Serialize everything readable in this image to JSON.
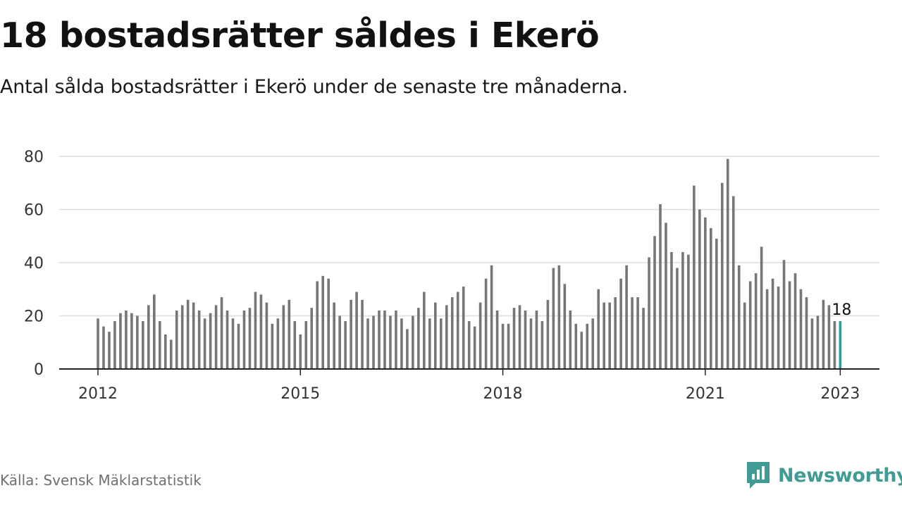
{
  "header": {
    "title": "18 bostadsrätter såldes i Ekerö",
    "subtitle": "Antal sålda bostadsrätter i Ekerö under de senaste tre månaderna."
  },
  "footer": {
    "source": "Källa: Svensk Mäklarstatistik",
    "brand": "Newsworthy"
  },
  "colors": {
    "bar": "#76767a",
    "highlight": "#20a39e",
    "grid": "#dddddd",
    "axis": "#222222",
    "brand": "#3f9b93"
  },
  "icons": {
    "brand_logo": "bar-chart-speech-bubble-icon"
  },
  "chart_data": {
    "type": "bar",
    "title": "18 bostadsrätter såldes i Ekerö",
    "subtitle": "Antal sålda bostadsrätter i Ekerö under de senaste tre månaderna.",
    "xlabel": "",
    "ylabel": "",
    "ylim": [
      0,
      80
    ],
    "yticks": [
      0,
      20,
      40,
      60,
      80
    ],
    "xticks": [
      {
        "label": "2012",
        "index": 0
      },
      {
        "label": "2015",
        "index": 36
      },
      {
        "label": "2018",
        "index": 72
      },
      {
        "label": "2021",
        "index": 108
      },
      {
        "label": "2023",
        "index": 132
      }
    ],
    "grid": true,
    "highlight_index": 132,
    "highlight_label": "18",
    "values": [
      19,
      16,
      14,
      18,
      21,
      22,
      21,
      20,
      18,
      24,
      28,
      18,
      13,
      11,
      22,
      24,
      26,
      25,
      22,
      19,
      21,
      24,
      27,
      22,
      19,
      17,
      22,
      23,
      29,
      28,
      25,
      17,
      19,
      24,
      26,
      18,
      13,
      18,
      23,
      33,
      35,
      34,
      25,
      20,
      18,
      26,
      29,
      26,
      19,
      20,
      22,
      22,
      20,
      22,
      19,
      15,
      20,
      23,
      29,
      19,
      25,
      19,
      24,
      27,
      29,
      31,
      18,
      16,
      25,
      34,
      39,
      22,
      17,
      17,
      23,
      24,
      22,
      19,
      22,
      18,
      26,
      38,
      39,
      32,
      22,
      17,
      14,
      17,
      19,
      30,
      25,
      25,
      27,
      34,
      39,
      27,
      27,
      23,
      42,
      50,
      62,
      55,
      44,
      38,
      44,
      43,
      69,
      60,
      57,
      53,
      49,
      70,
      79,
      65,
      39,
      25,
      33,
      36,
      46,
      30,
      34,
      31,
      41,
      33,
      36,
      30,
      27,
      19,
      20,
      26,
      24,
      18,
      18
    ]
  }
}
